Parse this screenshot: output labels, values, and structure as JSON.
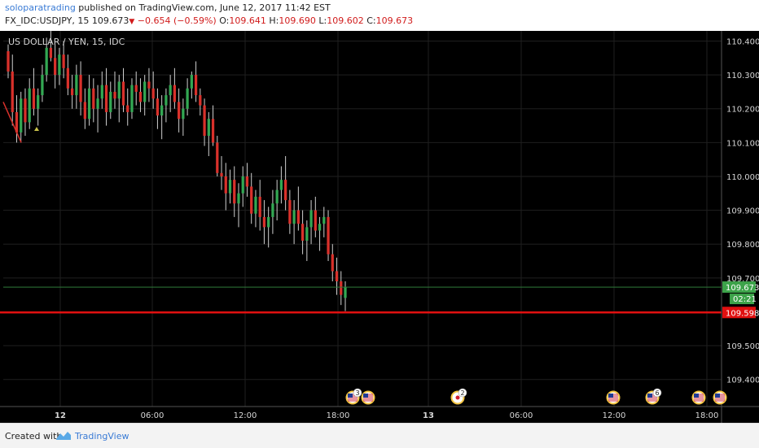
{
  "header": {
    "author": "soloparatrading",
    "published": " published on TradingView.com, June 12, 2017 11:42 EST",
    "symbol": "FX_IDC:USDJPY, 15",
    "last": "109.673",
    "change": "−0.654 (−0.59%)",
    "o_label": "O:",
    "o_value": "109.641",
    "h_label": "H:",
    "h_value": "109.690",
    "l_label": "L:",
    "l_value": "109.602",
    "c_label": "C:",
    "c_value": "109.673"
  },
  "footer": {
    "created_with": "Created with",
    "brand": "TradingView"
  },
  "colors": {
    "background": "#000000",
    "grid": "#1f1f1f",
    "up": "#33a853",
    "down": "#d9312b",
    "wick": "#cfcfcf",
    "support_line": "#e01010",
    "last_price_badge": "#3da34a",
    "axis_text": "#d6d6d6"
  },
  "chart_data": {
    "type": "candlestick",
    "title": "US DOLLAR / YEN, 15, IDC",
    "ylim": [
      109.32,
      110.43
    ],
    "y_ticks": [
      "110.400",
      "110.300",
      "110.200",
      "110.100",
      "110.000",
      "109.900",
      "109.800",
      "109.700",
      "109.500",
      "109.400"
    ],
    "x_ticks": [
      "12",
      "06:00",
      "12:00",
      "18:00",
      "13",
      "06:00",
      "12:00",
      "18:00"
    ],
    "last_price": "109.673",
    "countdown": "02:21",
    "support_level": "109.598",
    "event_icons": [
      {
        "flag": "US",
        "count": "3"
      },
      {
        "flag": "US",
        "count": ""
      },
      {
        "flag": "JP",
        "count": "2"
      },
      {
        "flag": "US",
        "count": ""
      },
      {
        "flag": "US",
        "count": "6"
      },
      {
        "flag": "US",
        "count": ""
      },
      {
        "flag": "US",
        "count": ""
      }
    ],
    "candles": [
      [
        110.37,
        110.39,
        110.29,
        110.31
      ],
      [
        110.31,
        110.36,
        110.15,
        110.19
      ],
      [
        110.19,
        110.24,
        110.1,
        110.13
      ],
      [
        110.13,
        110.25,
        110.1,
        110.23
      ],
      [
        110.23,
        110.26,
        110.12,
        110.16
      ],
      [
        110.16,
        110.29,
        110.14,
        110.26
      ],
      [
        110.26,
        110.32,
        110.18,
        110.2
      ],
      [
        110.2,
        110.26,
        110.15,
        110.24
      ],
      [
        110.24,
        110.33,
        110.22,
        110.3
      ],
      [
        110.3,
        110.41,
        110.28,
        110.38
      ],
      [
        110.38,
        110.43,
        110.34,
        110.35
      ],
      [
        110.35,
        110.39,
        110.26,
        110.3
      ],
      [
        110.3,
        110.38,
        110.27,
        110.36
      ],
      [
        110.36,
        110.4,
        110.29,
        110.32
      ],
      [
        110.32,
        110.36,
        110.24,
        110.26
      ],
      [
        110.26,
        110.3,
        110.2,
        110.24
      ],
      [
        110.24,
        110.33,
        110.2,
        110.3
      ],
      [
        110.3,
        110.34,
        110.18,
        110.22
      ],
      [
        110.22,
        110.26,
        110.14,
        110.17
      ],
      [
        110.17,
        110.3,
        110.15,
        110.26
      ],
      [
        110.26,
        110.29,
        110.16,
        110.2
      ],
      [
        110.2,
        110.27,
        110.13,
        110.23
      ],
      [
        110.23,
        110.31,
        110.2,
        110.27
      ],
      [
        110.27,
        110.32,
        110.15,
        110.19
      ],
      [
        110.19,
        110.28,
        110.17,
        110.25
      ],
      [
        110.25,
        110.31,
        110.2,
        110.23
      ],
      [
        110.23,
        110.3,
        110.16,
        110.28
      ],
      [
        110.28,
        110.32,
        110.19,
        110.21
      ],
      [
        110.21,
        110.26,
        110.15,
        110.19
      ],
      [
        110.19,
        110.29,
        110.17,
        110.27
      ],
      [
        110.27,
        110.31,
        110.21,
        110.25
      ],
      [
        110.25,
        110.29,
        110.19,
        110.22
      ],
      [
        110.22,
        110.3,
        110.18,
        110.28
      ],
      [
        110.28,
        110.32,
        110.22,
        110.26
      ],
      [
        110.26,
        110.31,
        110.2,
        110.23
      ],
      [
        110.23,
        110.26,
        110.14,
        110.18
      ],
      [
        110.18,
        110.24,
        110.11,
        110.21
      ],
      [
        110.21,
        110.26,
        110.16,
        110.24
      ],
      [
        110.24,
        110.3,
        110.19,
        110.27
      ],
      [
        110.27,
        110.32,
        110.2,
        110.22
      ],
      [
        110.22,
        110.26,
        110.13,
        110.17
      ],
      [
        110.17,
        110.23,
        110.12,
        110.2
      ],
      [
        110.2,
        110.29,
        110.18,
        110.26
      ],
      [
        110.26,
        110.31,
        110.23,
        110.3
      ],
      [
        110.3,
        110.34,
        110.22,
        110.24
      ],
      [
        110.24,
        110.26,
        110.18,
        110.21
      ],
      [
        110.21,
        110.23,
        110.09,
        110.12
      ],
      [
        110.12,
        110.19,
        110.06,
        110.17
      ],
      [
        110.17,
        110.21,
        110.09,
        110.1
      ],
      [
        110.1,
        110.12,
        110.0,
        110.01
      ],
      [
        110.01,
        110.06,
        109.96,
        110.0
      ],
      [
        110.0,
        110.04,
        109.9,
        109.95
      ],
      [
        109.95,
        110.02,
        109.92,
        109.99
      ],
      [
        109.99,
        110.03,
        109.88,
        109.92
      ],
      [
        109.92,
        109.98,
        109.85,
        109.95
      ],
      [
        109.95,
        110.03,
        109.91,
        110.0
      ],
      [
        110.0,
        110.04,
        109.94,
        109.97
      ],
      [
        109.97,
        110.01,
        109.86,
        109.89
      ],
      [
        109.89,
        109.96,
        109.85,
        109.94
      ],
      [
        109.94,
        109.99,
        109.84,
        109.88
      ],
      [
        109.88,
        109.93,
        109.8,
        109.85
      ],
      [
        109.85,
        109.91,
        109.79,
        109.88
      ],
      [
        109.88,
        109.96,
        109.83,
        109.92
      ],
      [
        109.92,
        109.99,
        109.87,
        109.96
      ],
      [
        109.96,
        110.03,
        109.92,
        109.99
      ],
      [
        109.99,
        110.06,
        109.9,
        109.93
      ],
      [
        109.93,
        109.96,
        109.83,
        109.86
      ],
      [
        109.86,
        109.93,
        109.8,
        109.9
      ],
      [
        109.9,
        109.97,
        109.84,
        109.86
      ],
      [
        109.86,
        109.9,
        109.77,
        109.81
      ],
      [
        109.81,
        109.87,
        109.75,
        109.85
      ],
      [
        109.85,
        109.93,
        109.8,
        109.9
      ],
      [
        109.9,
        109.94,
        109.82,
        109.84
      ],
      [
        109.84,
        109.88,
        109.78,
        109.86
      ],
      [
        109.86,
        109.91,
        109.82,
        109.88
      ],
      [
        109.88,
        109.9,
        109.75,
        109.77
      ],
      [
        109.77,
        109.8,
        109.69,
        109.72
      ],
      [
        109.72,
        109.76,
        109.65,
        109.69
      ],
      [
        109.69,
        109.72,
        109.62,
        109.65
      ],
      [
        109.641,
        109.69,
        109.602,
        109.673
      ]
    ]
  }
}
